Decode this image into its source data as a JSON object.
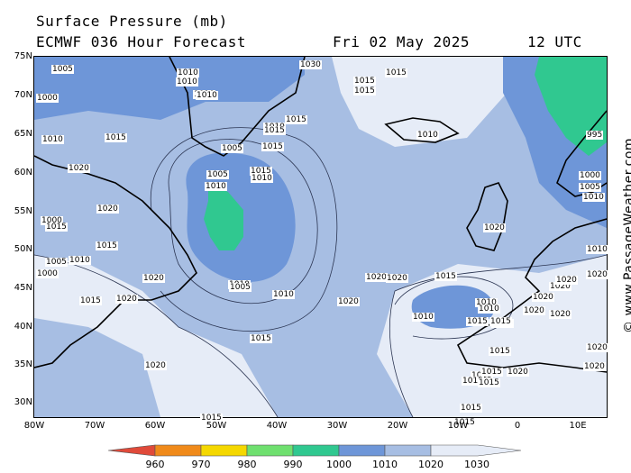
{
  "header": {
    "title": "Surface Pressure (mb)",
    "model": "ECMWF 036 Hour Forecast",
    "date": "Fri 02 May 2025",
    "time": "12 UTC"
  },
  "credit": "© www.PassageWeather.com",
  "lat_labels": [
    "75N",
    "70N",
    "65N",
    "60N",
    "55N",
    "50N",
    "45N",
    "40N",
    "35N",
    "30N"
  ],
  "lon_labels": [
    "80W",
    "70W",
    "60W",
    "50W",
    "40W",
    "30W",
    "20W",
    "10W",
    "0",
    "10E"
  ],
  "colorbar": {
    "ticks": [
      "960",
      "970",
      "980",
      "990",
      "1000",
      "1010",
      "1020",
      "1030"
    ],
    "colors": [
      "#e04a3a",
      "#f08a1a",
      "#f5d800",
      "#6fe06f",
      "#30c890",
      "#6e96d8",
      "#a7bee3",
      "#e6ecf7"
    ]
  },
  "colors": {
    "band_990_1000": "#30c890",
    "band_1000_1010": "#6e96d8",
    "band_1010_1020": "#a7bee3",
    "band_1020_1030": "#e6ecf7"
  },
  "contour_labels": [
    "1005",
    "1010",
    "1010",
    "1010",
    "1030",
    "1015",
    "1015",
    "1015",
    "1000",
    "1010",
    "1015",
    "1010",
    "1005",
    "1015",
    "1015",
    "1015",
    "1010",
    "1020",
    "1010",
    "1005",
    "1010",
    "1010",
    "1015",
    "1020",
    "1000",
    "1005",
    "1020",
    "1015",
    "1015",
    "1015",
    "1010",
    "1000",
    "1010",
    "1020",
    "1005",
    "1020",
    "1020",
    "1010",
    "1015",
    "1020",
    "1010",
    "1010",
    "1015",
    "1020",
    "1015",
    "1020",
    "1020",
    "1015",
    "1020",
    "1020",
    "1015",
    "995",
    "1000",
    "1005",
    "1010",
    "1015",
    "1015",
    "1015",
    "1020",
    "1020",
    "1020",
    "1020",
    "1020",
    "1015",
    "1015",
    "1015",
    "1015",
    "1010",
    "1010",
    "1020",
    "1015"
  ]
}
